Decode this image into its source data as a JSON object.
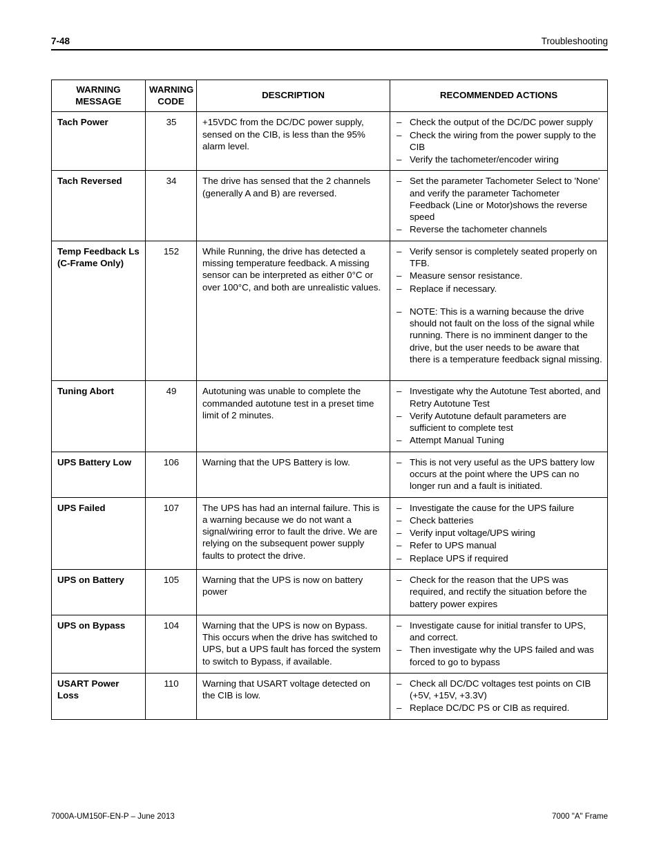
{
  "page_number": "7-48",
  "section_title": "Troubleshooting",
  "footer_left": "7000A-UM150F-EN-P – June 2013",
  "footer_right": "7000 \"A\" Frame",
  "headers": {
    "message": "WARNING\nMESSAGE",
    "code": "WARNING\nCODE",
    "description": "DESCRIPTION",
    "actions": "RECOMMENDED ACTIONS"
  },
  "rows": [
    {
      "message": "Tach Power",
      "code": "35",
      "description": "+15VDC from the DC/DC power supply, sensed on the CIB, is less than the 95% alarm level.",
      "actions": [
        "Check the output of the DC/DC power supply",
        "Check the wiring from the power supply to the CIB",
        "Verify the tachometer/encoder wiring"
      ]
    },
    {
      "message": "Tach Reversed",
      "code": "34",
      "description": "The drive has sensed that the 2 channels (generally A and B) are reversed.",
      "actions": [
        "Set the parameter Tachometer Select to 'None' and verify the parameter Tachometer Feedback (Line or Motor)shows the reverse speed",
        "Reverse the tachometer channels"
      ]
    },
    {
      "message": "Temp Feedback Ls (C-Frame Only)",
      "code": "152",
      "description": "While Running, the drive has detected a missing temperature feedback.  A missing sensor can be interpreted as either 0°C or over 100°C, and both are unrealistic values.",
      "actions": [
        "Verify sensor is completely seated properly on TFB.",
        "Measure sensor resistance.",
        "Replace if necessary.",
        "",
        "NOTE: This is a warning because the drive should not fault on the loss of the signal while running.  There is no imminent danger to the drive, but the user needs to be aware that there is a temperature feedback signal missing."
      ],
      "trailing_space": true
    },
    {
      "message": "Tuning Abort",
      "code": "49",
      "description": "Autotuning was unable to complete the commanded autotune test in a preset time limit of 2 minutes.",
      "actions": [
        "Investigate why the Autotune Test aborted, and Retry Autotune Test",
        "Verify Autotune default parameters are sufficient to complete test",
        "Attempt Manual Tuning"
      ]
    },
    {
      "message": "UPS Battery Low",
      "code": "106",
      "description": "Warning that the UPS Battery is low.",
      "actions": [
        "This is not very useful as the UPS battery low occurs at the point where the UPS can no longer run and a fault is initiated."
      ]
    },
    {
      "message": "UPS Failed",
      "code": "107",
      "description": "The UPS has had an internal failure.  This is a warning because we do not want a signal/wiring error to fault the drive.  We are relying on the subsequent power supply faults to protect the drive.",
      "actions": [
        "Investigate the cause for the UPS failure",
        "Check batteries",
        "Verify input voltage/UPS wiring",
        "Refer to UPS manual",
        "Replace UPS if required"
      ]
    },
    {
      "message": "UPS on Battery",
      "code": "105",
      "description": "Warning that the UPS is now on battery power",
      "actions": [
        "Check for the reason that the UPS was required, and rectify the situation before the battery power expires"
      ]
    },
    {
      "message": "UPS on Bypass",
      "code": "104",
      "description": "Warning that the UPS is now on Bypass.  This occurs when the drive has switched to UPS, but a UPS fault has forced the system to switch to Bypass, if available.",
      "actions": [
        "Investigate cause for initial transfer to UPS, and correct.",
        "Then investigate why the UPS failed and was forced to go to bypass"
      ]
    },
    {
      "message": "USART Power Loss",
      "code": "110",
      "description": "Warning that USART voltage detected on the CIB is low.",
      "actions": [
        "Check all DC/DC voltages test points on CIB (+5V, +15V, +3.3V)",
        "Replace DC/DC PS or CIB as required."
      ]
    }
  ]
}
